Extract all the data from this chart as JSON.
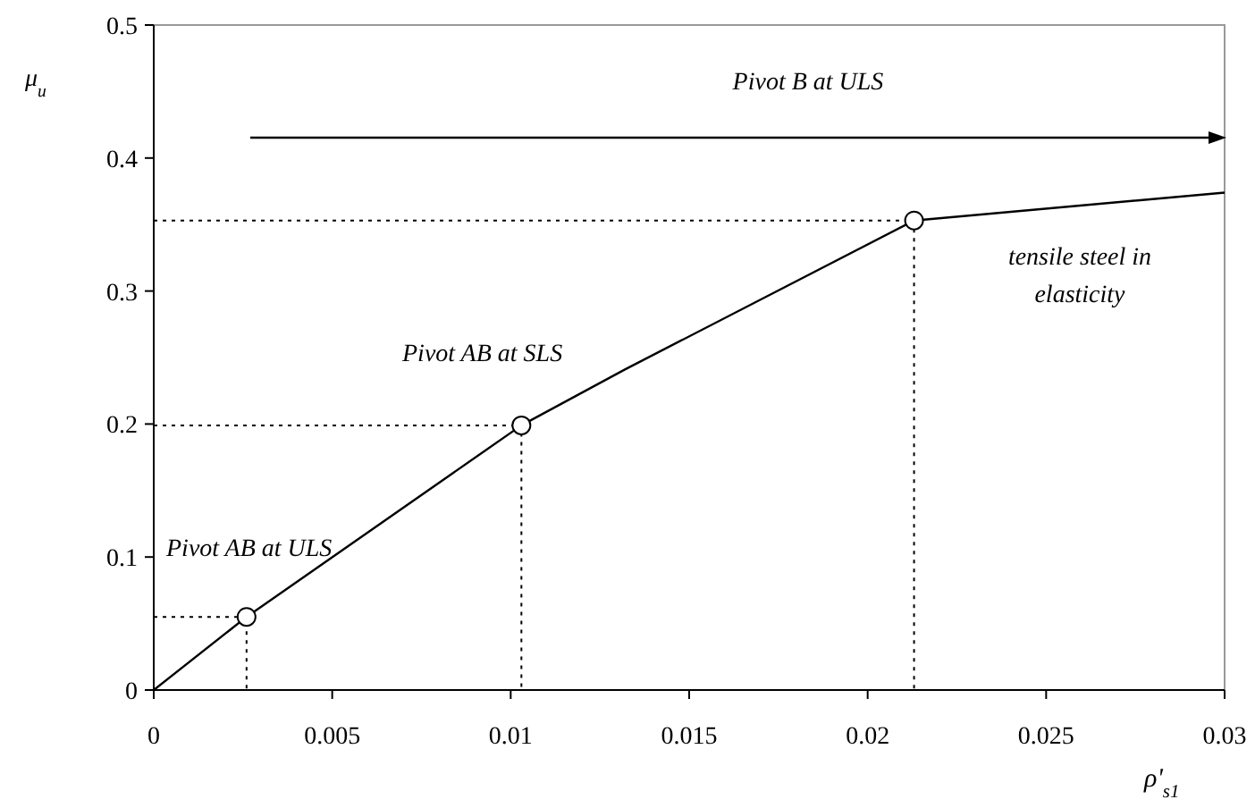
{
  "chart_data": {
    "type": "line",
    "xlabel": "ρ'$_{s1}$",
    "ylabel": "μ$_{u}$",
    "xlim": [
      0,
      0.03
    ],
    "xticks": [
      0,
      0.005,
      0.01,
      0.015,
      0.02,
      0.025,
      0.03
    ],
    "ylim": [
      0,
      0.5
    ],
    "yticks": [
      0,
      0.1,
      0.2,
      0.3,
      0.4,
      0.5
    ],
    "grid": false,
    "line_style": "solid",
    "series": [
      {
        "type": "line",
        "color": "#000000",
        "marker": "none",
        "x": [
          0,
          0.0026,
          0.0103,
          0.0132,
          0.0213,
          0.03
        ],
        "values": [
          0,
          0.055,
          0.199,
          0.241,
          0.353,
          0.374
        ]
      },
      {
        "type": "line",
        "color": "#000000",
        "marker": "none",
        "line_style": "dotted",
        "x": [
          0,
          0.0026,
          0.0026
        ],
        "values": [
          0.055,
          0.055,
          0
        ]
      },
      {
        "type": "line",
        "color": "#000000",
        "marker": "none",
        "line_style": "dotted",
        "x": [
          0,
          0.0103,
          0.0103
        ],
        "values": [
          0.199,
          0.199,
          0
        ]
      },
      {
        "type": "line",
        "color": "#000000",
        "marker": "none",
        "line_style": "dotted",
        "x": [
          0,
          0.0213,
          0.0213
        ],
        "values": [
          0.353,
          0.353,
          0
        ]
      },
      {
        "type": "scatter",
        "color": "#000000",
        "marker": "circle",
        "x": [
          0.0026,
          0.0103,
          0.0213
        ],
        "values": [
          0.055,
          0.199,
          0.353
        ]
      }
    ],
    "annotations": [
      "Pivot AB at ULS",
      "Pivot AB at SLS",
      "Pivot B at ULS",
      "tensile steel in elasticity"
    ]
  }
}
